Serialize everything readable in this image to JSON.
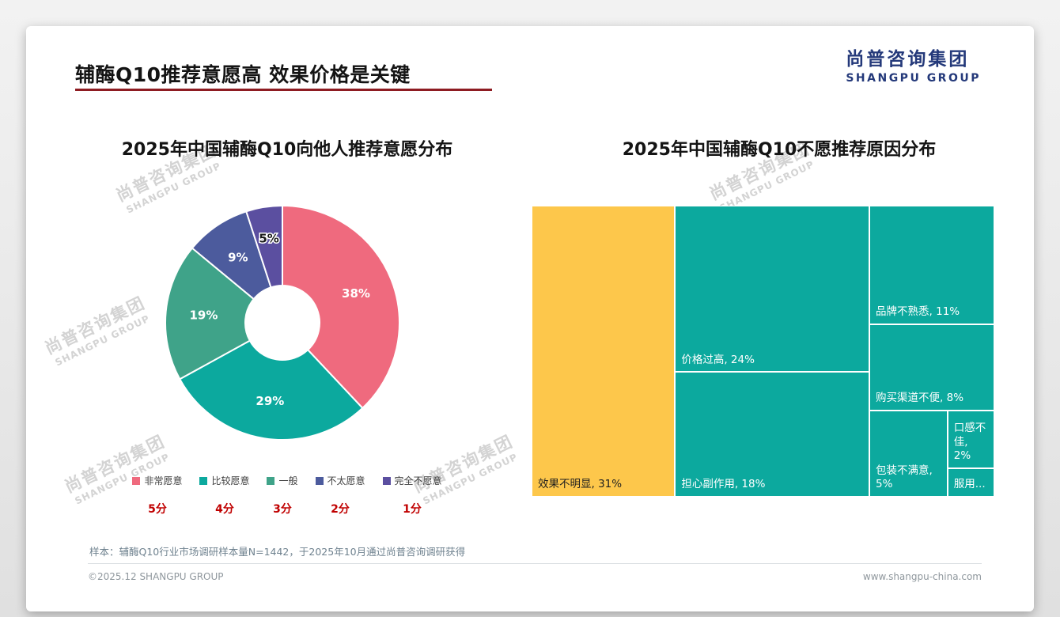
{
  "page": {
    "title": "辅酶Q10推荐意愿高 效果价格是关键",
    "logo": {
      "cn": "尚普咨询集团",
      "en": "SHANGPU GROUP"
    },
    "watermark": {
      "cn": "尚普咨询集团",
      "en": "SHANGPU GROUP"
    },
    "footer_note": "样本：辅酶Q10行业市场调研样本量N=1442，于2025年10月通过尚普咨询调研获得",
    "copyright": "©2025.12 SHANGPU GROUP",
    "website": "www.shangpu-china.com"
  },
  "chart_data": [
    {
      "type": "pie",
      "subtype": "donut",
      "title": "2025年中国辅酶Q10向他人推荐意愿分布",
      "categories": [
        "非常愿意",
        "比较愿意",
        "一般",
        "不太愿意",
        "完全不愿意"
      ],
      "values": [
        38,
        29,
        19,
        9,
        5
      ],
      "scores": [
        "5分",
        "4分",
        "3分",
        "2分",
        "1分"
      ],
      "colors": [
        "#ef6a7e",
        "#0ca99e",
        "#3fa389",
        "#4c5b9d",
        "#5b4fa0"
      ],
      "label_colors": [
        "#ffffff",
        "#ffffff",
        "#ffffff",
        "#ffffff",
        "#1a1a1a"
      ],
      "legend_position": "bottom",
      "start_angle": 0,
      "direction": "clockwise"
    },
    {
      "type": "treemap",
      "title": "2025年中国辅酶Q10不愿推荐原因分布",
      "items": [
        {
          "label": "效果不明显",
          "value": 31,
          "color": "#fdc74b",
          "text_color": "#1f1f1f"
        },
        {
          "label": "价格过高",
          "value": 24,
          "color": "#0ca99e",
          "text_color": "#ffffff"
        },
        {
          "label": "担心副作用",
          "value": 18,
          "color": "#0ca99e",
          "text_color": "#ffffff"
        },
        {
          "label": "品牌不熟悉",
          "value": 11,
          "color": "#0ca99e",
          "text_color": "#ffffff"
        },
        {
          "label": "购买渠道不便",
          "value": 8,
          "color": "#0ca99e",
          "text_color": "#ffffff"
        },
        {
          "label": "包装不满意",
          "value": 5,
          "color": "#0ca99e",
          "text_color": "#ffffff"
        },
        {
          "label": "口感不佳",
          "value": 2,
          "color": "#0ca99e",
          "text_color": "#ffffff"
        },
        {
          "label": "服用",
          "display": "服用...",
          "value": 1,
          "color": "#0ca99e",
          "text_color": "#ffffff"
        }
      ]
    }
  ]
}
